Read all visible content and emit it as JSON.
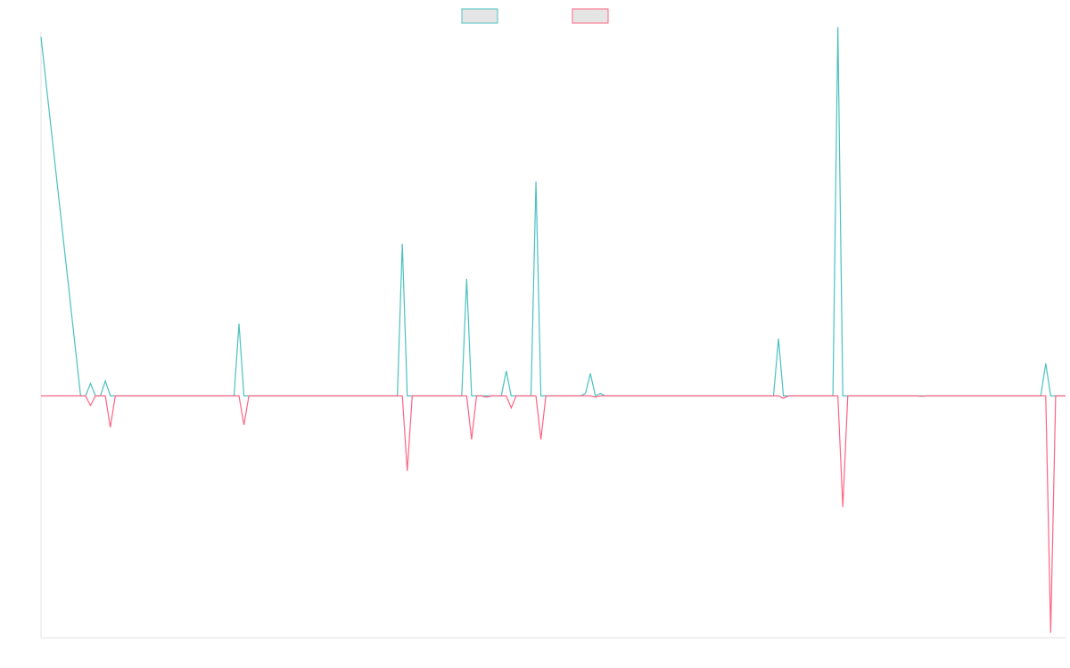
{
  "chart_data": {
    "type": "line",
    "title": "",
    "xlabel": "",
    "ylabel": "",
    "grid": false,
    "legend": "top-center",
    "n_points": 208,
    "ylim": [
      -100,
      146
    ],
    "series": [
      {
        "color": "#4BC0C0",
        "fill": "#E5E5E5",
        "points": [
          [
            0,
            144
          ],
          [
            8,
            0
          ],
          [
            9,
            0
          ],
          [
            10,
            5
          ],
          [
            11,
            0
          ],
          [
            12,
            0
          ],
          [
            13,
            6
          ],
          [
            14,
            0
          ],
          [
            39,
            0
          ],
          [
            40,
            29
          ],
          [
            41,
            0
          ],
          [
            72,
            0
          ],
          [
            73,
            61
          ],
          [
            74,
            0
          ],
          [
            85,
            0
          ],
          [
            86,
            47
          ],
          [
            87,
            0
          ],
          [
            88,
            0
          ],
          [
            89,
            0
          ],
          [
            90,
            0
          ],
          [
            91,
            0
          ],
          [
            92,
            0
          ],
          [
            93,
            0
          ],
          [
            94,
            10
          ],
          [
            95,
            0
          ],
          [
            99,
            0
          ],
          [
            100,
            86
          ],
          [
            101,
            0
          ],
          [
            109,
            0
          ],
          [
            110,
            1
          ],
          [
            111,
            9
          ],
          [
            112,
            0
          ],
          [
            113,
            1
          ],
          [
            114,
            0
          ],
          [
            148,
            0
          ],
          [
            149,
            23
          ],
          [
            150,
            0
          ],
          [
            160,
            0
          ],
          [
            161,
            148
          ],
          [
            162,
            0
          ],
          [
            202,
            0
          ],
          [
            203,
            13
          ],
          [
            204,
            0
          ],
          [
            207,
            0
          ]
        ]
      },
      {
        "color": "#FF6384",
        "fill": "#E5E5E5",
        "points": [
          [
            0,
            0
          ],
          [
            9,
            0
          ],
          [
            10,
            -4
          ],
          [
            11,
            0
          ],
          [
            13,
            0
          ],
          [
            14,
            -13
          ],
          [
            15,
            0
          ],
          [
            40,
            0
          ],
          [
            41,
            -12
          ],
          [
            42,
            0
          ],
          [
            73,
            0
          ],
          [
            74,
            -31
          ],
          [
            75,
            0
          ],
          [
            86,
            0
          ],
          [
            87,
            -18
          ],
          [
            88,
            0
          ],
          [
            89,
            0
          ],
          [
            90,
            -0.5
          ],
          [
            91,
            0
          ],
          [
            94,
            0
          ],
          [
            95,
            -5
          ],
          [
            96,
            0
          ],
          [
            100,
            0
          ],
          [
            101,
            -18
          ],
          [
            102,
            0
          ],
          [
            111,
            0
          ],
          [
            112,
            -0.5
          ],
          [
            113,
            0
          ],
          [
            149,
            0
          ],
          [
            150,
            -1
          ],
          [
            151,
            0
          ],
          [
            161,
            0
          ],
          [
            162,
            -46
          ],
          [
            163,
            0
          ],
          [
            177,
            0
          ],
          [
            178,
            -0.2
          ],
          [
            179,
            0
          ],
          [
            203,
            0
          ],
          [
            204,
            -98
          ],
          [
            205,
            0
          ],
          [
            207,
            0
          ]
        ]
      }
    ]
  }
}
